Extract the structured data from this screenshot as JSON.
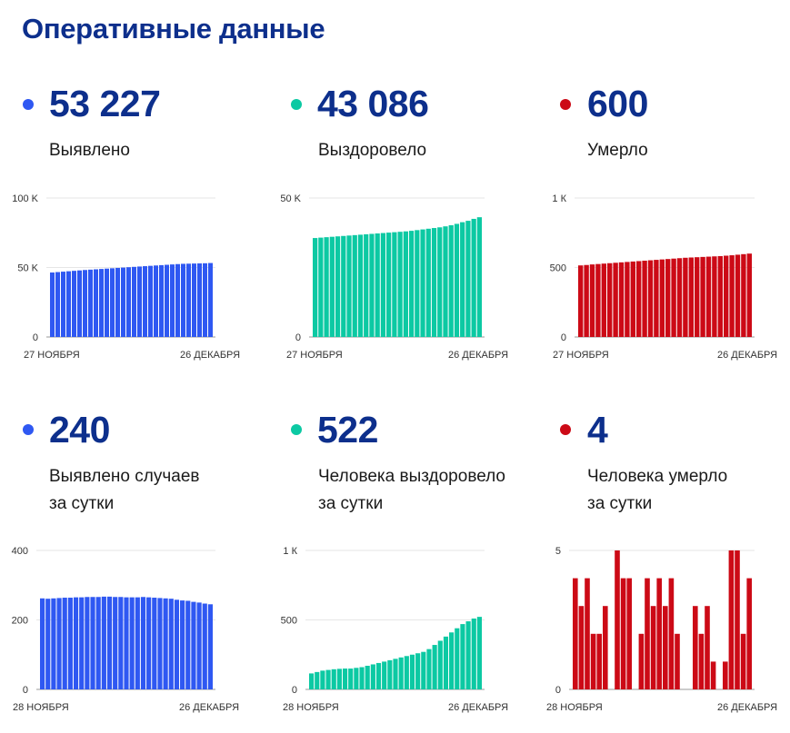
{
  "page_title": "Оперативные данные",
  "colors": {
    "blue": "#2f58f2",
    "teal": "#0cc9a3",
    "red": "#cc0a16",
    "title": "#0d2f8c"
  },
  "stats": [
    {
      "value": "53 227",
      "label_line1": "Выявлено",
      "label_line2": "",
      "color": "#2f58f2"
    },
    {
      "value": "43 086",
      "label_line1": "Выздоровело",
      "label_line2": "",
      "color": "#0cc9a3"
    },
    {
      "value": "600",
      "label_line1": "Умерло",
      "label_line2": "",
      "color": "#cc0a16"
    },
    {
      "value": "240",
      "label_line1": "Выявлено случаев",
      "label_line2": "за сутки",
      "color": "#2f58f2"
    },
    {
      "value": "522",
      "label_line1": "Человека выздоровело",
      "label_line2": "за сутки",
      "color": "#0cc9a3"
    },
    {
      "value": "4",
      "label_line1": "Человека умерло",
      "label_line2": "за сутки",
      "color": "#cc0a16"
    }
  ],
  "chart_data": [
    {
      "type": "bar",
      "title": "",
      "color": "#2f58f2",
      "ylim": [
        0,
        100000
      ],
      "ytick_values": [
        0,
        50000,
        100000
      ],
      "ytick_labels": [
        "0",
        "50 K",
        "100 K"
      ],
      "x_start_label": "27 НОЯБРЯ",
      "x_end_label": "26 ДЕКАБРЯ",
      "values": [
        46400,
        46700,
        47000,
        47300,
        47600,
        47900,
        48200,
        48450,
        48700,
        48950,
        49200,
        49450,
        49700,
        49950,
        50200,
        50450,
        50700,
        50950,
        51200,
        51450,
        51700,
        51950,
        52200,
        52450,
        52650,
        52750,
        52850,
        52950,
        53050,
        53227
      ]
    },
    {
      "type": "bar",
      "title": "",
      "color": "#0cc9a3",
      "ylim": [
        0,
        50000
      ],
      "ytick_values": [
        0,
        50000
      ],
      "ytick_labels": [
        "0",
        "50 K"
      ],
      "x_start_label": "27 НОЯБРЯ",
      "x_end_label": "26 ДЕКАБРЯ",
      "values": [
        35600,
        35750,
        35900,
        36050,
        36200,
        36350,
        36500,
        36650,
        36800,
        36950,
        37100,
        37250,
        37400,
        37550,
        37700,
        37850,
        38000,
        38200,
        38450,
        38700,
        38950,
        39200,
        39450,
        39800,
        40200,
        40700,
        41300,
        41800,
        42500,
        43086
      ]
    },
    {
      "type": "bar",
      "title": "",
      "color": "#cc0a16",
      "ylim": [
        0,
        1000
      ],
      "ytick_values": [
        0,
        500,
        1000
      ],
      "ytick_labels": [
        "0",
        "500",
        "1 К"
      ],
      "x_start_label": "27 НОЯБРЯ",
      "x_end_label": "26 ДЕКАБРЯ",
      "values": [
        515,
        518,
        522,
        525,
        528,
        531,
        534,
        537,
        540,
        543,
        546,
        549,
        552,
        555,
        558,
        561,
        564,
        567,
        570,
        572,
        574,
        576,
        578,
        580,
        582,
        585,
        588,
        592,
        596,
        600
      ]
    },
    {
      "type": "bar",
      "title": "",
      "color": "#2f58f2",
      "ylim": [
        0,
        400
      ],
      "ytick_values": [
        0,
        200,
        400
      ],
      "ytick_labels": [
        "0",
        "200",
        "400"
      ],
      "x_start_label": "28 НОЯБРЯ",
      "x_end_label": "26 ДЕКАБРЯ",
      "values": [
        262,
        261,
        262,
        263,
        264,
        264,
        265,
        265,
        266,
        266,
        266,
        267,
        267,
        266,
        266,
        265,
        265,
        265,
        266,
        265,
        264,
        263,
        262,
        261,
        258,
        256,
        255,
        252,
        250,
        247,
        245
      ]
    },
    {
      "type": "bar",
      "title": "",
      "color": "#0cc9a3",
      "ylim": [
        0,
        1000
      ],
      "ytick_values": [
        0,
        500,
        1000
      ],
      "ytick_labels": [
        "0",
        "500",
        "1 К"
      ],
      "x_start_label": "28 НОЯБРЯ",
      "x_end_label": "26 ДЕКАБРЯ",
      "values": [
        115,
        125,
        135,
        140,
        145,
        148,
        150,
        150,
        155,
        160,
        170,
        180,
        190,
        200,
        210,
        220,
        230,
        240,
        250,
        260,
        270,
        290,
        320,
        350,
        380,
        410,
        440,
        470,
        490,
        510,
        522
      ]
    },
    {
      "type": "bar",
      "title": "",
      "color": "#cc0a16",
      "ylim": [
        0,
        5
      ],
      "ytick_values": [
        0,
        5
      ],
      "ytick_labels": [
        "0",
        "5"
      ],
      "x_start_label": "28 НОЯБРЯ",
      "x_end_label": "26 ДЕКАБРЯ",
      "values": [
        4,
        3,
        4,
        2,
        2,
        3,
        0,
        5,
        4,
        4,
        0,
        2,
        4,
        3,
        4,
        3,
        4,
        2,
        0,
        0,
        3,
        2,
        3,
        1,
        0,
        1,
        5,
        5,
        2,
        4
      ]
    }
  ]
}
